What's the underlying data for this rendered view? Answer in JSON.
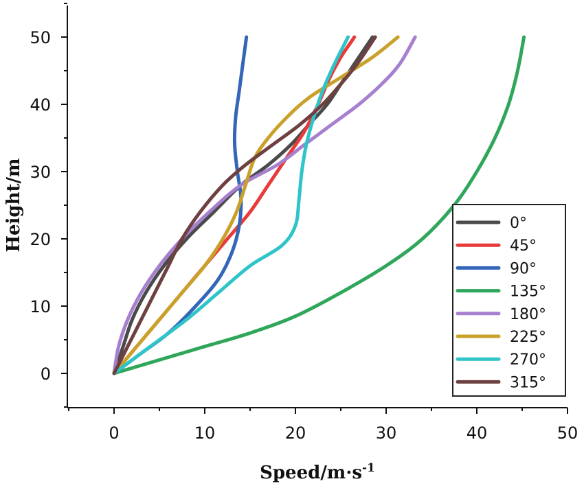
{
  "chart_data": {
    "type": "line",
    "title": "",
    "xlabel": "Speed/m·s",
    "xlabel_sup": "-1",
    "ylabel": "Height/m",
    "xlim": [
      -5,
      50
    ],
    "ylim": [
      -5,
      55
    ],
    "xticks": [
      0,
      10,
      20,
      30,
      40,
      50
    ],
    "yticks": [
      0,
      10,
      20,
      30,
      40,
      50
    ],
    "xtick_labels": [
      "0",
      "10",
      "20",
      "30",
      "40",
      "50"
    ],
    "ytick_labels": [
      "0",
      "10",
      "20",
      "30",
      "40",
      "50"
    ],
    "grid": false,
    "legend_position": "bottom-right",
    "series": [
      {
        "name": "0°",
        "color": "#4a4a4a",
        "points": [
          [
            0,
            0
          ],
          [
            1,
            4
          ],
          [
            2,
            8
          ],
          [
            3.5,
            12
          ],
          [
            5.5,
            16
          ],
          [
            8,
            20
          ],
          [
            11,
            24
          ],
          [
            14,
            28
          ],
          [
            17,
            31
          ],
          [
            19.5,
            34
          ],
          [
            21.5,
            37
          ],
          [
            23.5,
            40
          ],
          [
            25,
            43
          ],
          [
            26.5,
            46
          ],
          [
            27.5,
            48
          ],
          [
            28.5,
            50
          ]
        ]
      },
      {
        "name": "45°",
        "color": "#e83a3a",
        "points": [
          [
            0,
            0
          ],
          [
            2.5,
            4
          ],
          [
            5,
            8
          ],
          [
            7.5,
            12
          ],
          [
            10,
            16
          ],
          [
            12.5,
            20
          ],
          [
            15,
            24
          ],
          [
            17,
            28
          ],
          [
            19,
            32
          ],
          [
            21,
            36
          ],
          [
            22.5,
            40
          ],
          [
            23.8,
            44
          ],
          [
            25,
            47
          ],
          [
            26,
            49
          ],
          [
            26.5,
            50
          ]
        ]
      },
      {
        "name": "90°",
        "color": "#3466b8",
        "points": [
          [
            0,
            0
          ],
          [
            3,
            3
          ],
          [
            6,
            6
          ],
          [
            9,
            10
          ],
          [
            11.5,
            14
          ],
          [
            13,
            18
          ],
          [
            13.8,
            22
          ],
          [
            14,
            26
          ],
          [
            13.6,
            30
          ],
          [
            13.3,
            34
          ],
          [
            13.4,
            38
          ],
          [
            13.8,
            42
          ],
          [
            14.2,
            46
          ],
          [
            14.6,
            50
          ]
        ]
      },
      {
        "name": "135°",
        "color": "#2fa65a",
        "points": [
          [
            0,
            0
          ],
          [
            5,
            2
          ],
          [
            10,
            4
          ],
          [
            15,
            6
          ],
          [
            20,
            8.5
          ],
          [
            25,
            12
          ],
          [
            30,
            16
          ],
          [
            34,
            20
          ],
          [
            37.5,
            25
          ],
          [
            40,
            30
          ],
          [
            42,
            35
          ],
          [
            43.5,
            40
          ],
          [
            44.5,
            45
          ],
          [
            45.2,
            50
          ]
        ]
      },
      {
        "name": "180°",
        "color": "#a77fcf",
        "points": [
          [
            0,
            0
          ],
          [
            0.5,
            4
          ],
          [
            1.5,
            8
          ],
          [
            3,
            12
          ],
          [
            5,
            16
          ],
          [
            7.5,
            20
          ],
          [
            10.5,
            24
          ],
          [
            14,
            28
          ],
          [
            18,
            31
          ],
          [
            21,
            34
          ],
          [
            24,
            37
          ],
          [
            27,
            40
          ],
          [
            29.5,
            43
          ],
          [
            31.5,
            46
          ],
          [
            33.2,
            50
          ]
        ]
      },
      {
        "name": "225°",
        "color": "#c9a12a",
        "points": [
          [
            0,
            0
          ],
          [
            2.5,
            4
          ],
          [
            5,
            8
          ],
          [
            7.5,
            12
          ],
          [
            10,
            16
          ],
          [
            12,
            20
          ],
          [
            13.5,
            24
          ],
          [
            14.5,
            28
          ],
          [
            15.5,
            32
          ],
          [
            17,
            35
          ],
          [
            19,
            38
          ],
          [
            21.5,
            41
          ],
          [
            25,
            44
          ],
          [
            28.5,
            47
          ],
          [
            31.3,
            50
          ]
        ]
      },
      {
        "name": "270°",
        "color": "#2ec4c8",
        "points": [
          [
            0,
            0
          ],
          [
            4,
            4
          ],
          [
            8,
            8
          ],
          [
            11.5,
            12
          ],
          [
            15,
            16
          ],
          [
            18.5,
            19
          ],
          [
            20,
            22
          ],
          [
            20.4,
            26
          ],
          [
            20.7,
            30
          ],
          [
            21.2,
            34
          ],
          [
            22,
            38
          ],
          [
            23,
            42
          ],
          [
            24.3,
            46
          ],
          [
            25.8,
            50
          ]
        ]
      },
      {
        "name": "315°",
        "color": "#6e4040",
        "points": [
          [
            0,
            0
          ],
          [
            1.5,
            4
          ],
          [
            3,
            8
          ],
          [
            4.5,
            12
          ],
          [
            6,
            16
          ],
          [
            7.5,
            20
          ],
          [
            9.5,
            24
          ],
          [
            12,
            28
          ],
          [
            14.5,
            31
          ],
          [
            17.5,
            34
          ],
          [
            20.5,
            37
          ],
          [
            23,
            40
          ],
          [
            25,
            43
          ],
          [
            26.8,
            46
          ],
          [
            28.8,
            50
          ]
        ]
      }
    ]
  }
}
